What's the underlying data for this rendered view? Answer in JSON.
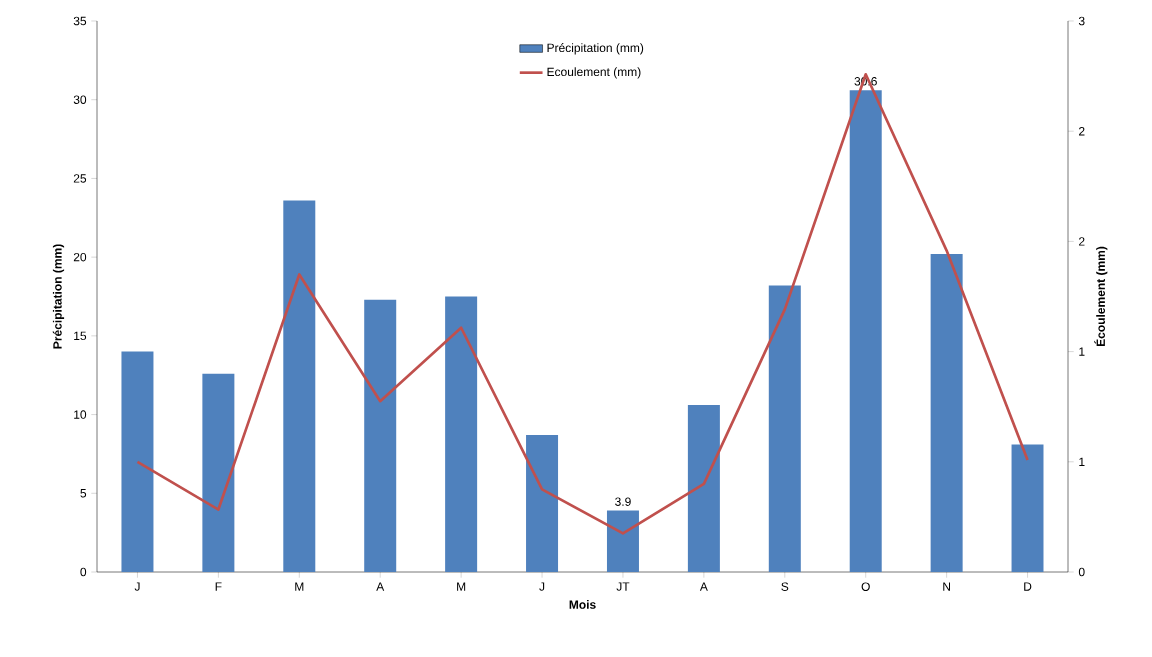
{
  "chart_data": {
    "type": "bar",
    "xlabel": "Mois",
    "ylabel": "Précipitation (mm)",
    "y2label": "Écoulement (mm)",
    "categories": [
      "J",
      "F",
      "M",
      "A",
      "M",
      "J",
      "JT",
      "A",
      "S",
      "O",
      "N",
      "D"
    ],
    "series": [
      {
        "name": "Précipitation (mm)",
        "color": "#4f81bd",
        "values": [
          14.0,
          12.6,
          23.6,
          17.3,
          17.5,
          8.7,
          3.9,
          10.6,
          18.2,
          30.6,
          20.2,
          8.1
        ],
        "value_labels": [
          null,
          null,
          null,
          null,
          null,
          null,
          "3.9",
          null,
          null,
          "30.6",
          null,
          null
        ]
      },
      {
        "name": "Ecoulement (mm)",
        "type": "line",
        "axis": "y2",
        "color": "#c0504d",
        "values": [
          0.6,
          0.34,
          1.62,
          0.93,
          1.33,
          0.45,
          0.21,
          0.48,
          1.43,
          2.71,
          1.75,
          0.61
        ]
      }
    ],
    "ylim": [
      0,
      35
    ],
    "yticks": [
      0,
      5,
      10,
      15,
      20,
      25,
      30,
      35
    ],
    "y2lim": [
      0,
      3
    ],
    "y2ticks": [
      0,
      {
        "value": 0.6,
        "label": "1"
      },
      {
        "value": 1.2,
        "label": "1"
      },
      {
        "value": 1.8,
        "label": "2"
      },
      {
        "value": 2.4,
        "label": "2"
      },
      3
    ],
    "grid": false,
    "legend": "top"
  }
}
